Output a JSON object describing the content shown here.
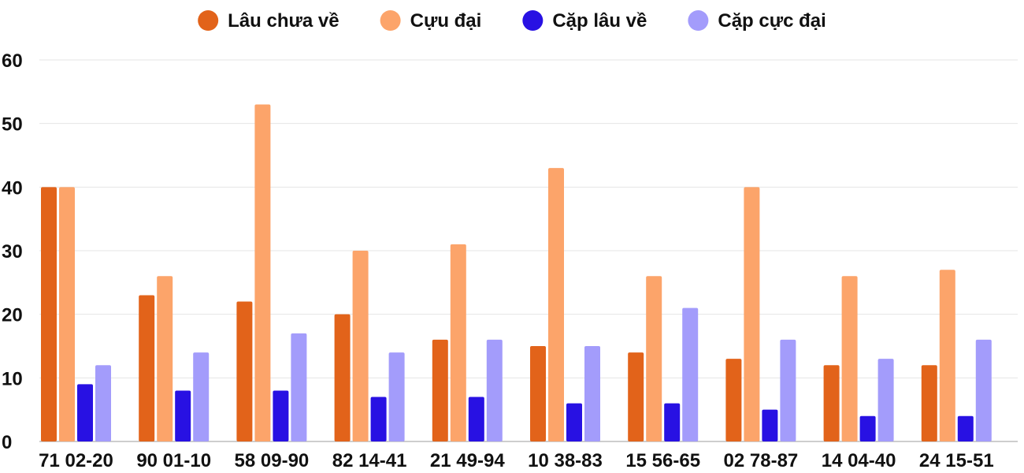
{
  "chart_data": {
    "type": "bar",
    "title": "",
    "xlabel": "",
    "ylabel": "",
    "ylim": [
      0,
      60
    ],
    "yticks": [
      0,
      10,
      20,
      30,
      40,
      50,
      60
    ],
    "grid": true,
    "legend_position": "top-center",
    "categories": [
      "71 02-20",
      "90 01-10",
      "58 09-90",
      "82 14-41",
      "21 49-94",
      "10 38-83",
      "15 56-65",
      "02 78-87",
      "14 04-40",
      "24 15-51"
    ],
    "series": [
      {
        "name": "Lâu chưa về",
        "color": "#e2631a",
        "values": [
          40,
          23,
          22,
          20,
          16,
          15,
          14,
          13,
          12,
          12
        ]
      },
      {
        "name": "Cựu đại",
        "color": "#fca46a",
        "values": [
          40,
          26,
          53,
          30,
          31,
          43,
          26,
          40,
          26,
          27
        ]
      },
      {
        "name": "Cặp lâu về",
        "color": "#2811e3",
        "values": [
          9,
          8,
          8,
          7,
          7,
          6,
          6,
          5,
          4,
          4
        ]
      },
      {
        "name": "Cặp cực đại",
        "color": "#a39cfb",
        "values": [
          12,
          14,
          17,
          14,
          16,
          15,
          21,
          16,
          13,
          16
        ]
      }
    ]
  }
}
